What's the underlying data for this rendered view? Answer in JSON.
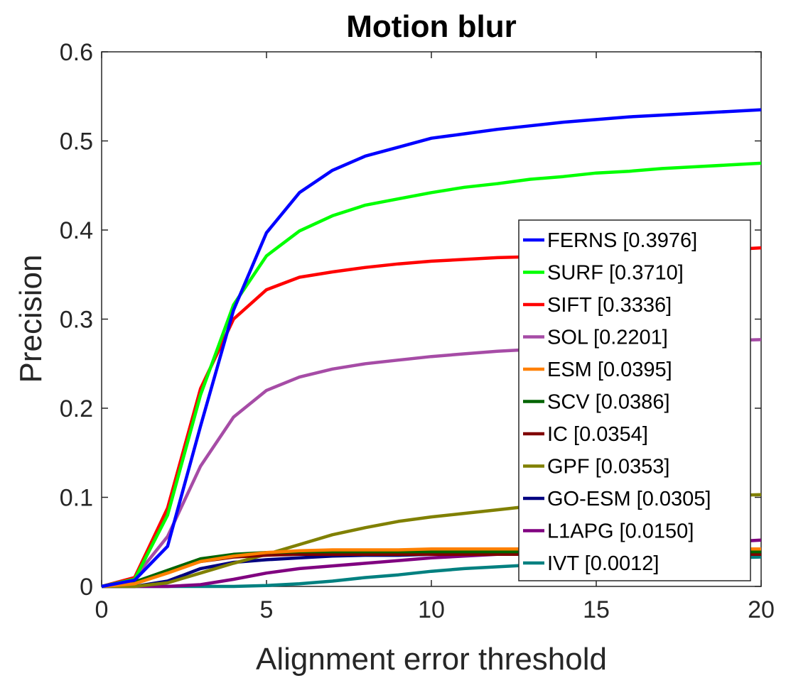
{
  "chart_data": {
    "type": "line",
    "title": "Motion blur",
    "xlabel": "Alignment error threshold",
    "ylabel": "Precision",
    "xlim": [
      0,
      20
    ],
    "ylim": [
      0,
      0.6
    ],
    "xticks": [
      "0",
      "5",
      "10",
      "15",
      "20"
    ],
    "yticks": [
      "0",
      "0.1",
      "0.2",
      "0.3",
      "0.4",
      "0.5",
      "0.6"
    ],
    "grid": false,
    "legend_position": "bottom-right",
    "x": [
      0,
      1,
      2,
      3,
      4,
      5,
      6,
      7,
      8,
      9,
      10,
      11,
      12,
      13,
      14,
      15,
      16,
      17,
      18,
      19,
      20
    ],
    "series": [
      {
        "name": "FERNS [0.3976]",
        "color": "#0000ff",
        "values": [
          0,
          0.007,
          0.045,
          0.18,
          0.31,
          0.397,
          0.442,
          0.467,
          0.483,
          0.493,
          0.503,
          0.508,
          0.513,
          0.517,
          0.521,
          0.524,
          0.527,
          0.529,
          0.531,
          0.533,
          0.535
        ]
      },
      {
        "name": "SURF [0.3710]",
        "color": "#00ff00",
        "values": [
          0,
          0.008,
          0.08,
          0.215,
          0.316,
          0.371,
          0.399,
          0.416,
          0.428,
          0.435,
          0.442,
          0.448,
          0.452,
          0.457,
          0.46,
          0.464,
          0.466,
          0.469,
          0.471,
          0.473,
          0.475
        ]
      },
      {
        "name": "SIFT [0.3336]",
        "color": "#ff0000",
        "values": [
          0,
          0.01,
          0.088,
          0.222,
          0.3,
          0.333,
          0.347,
          0.353,
          0.358,
          0.362,
          0.365,
          0.367,
          0.369,
          0.37,
          0.372,
          0.373,
          0.374,
          0.375,
          0.377,
          0.378,
          0.38
        ]
      },
      {
        "name": "SOL [0.2201]",
        "color": "#a64ca6",
        "values": [
          0,
          0.01,
          0.056,
          0.135,
          0.19,
          0.22,
          0.235,
          0.244,
          0.25,
          0.254,
          0.258,
          0.261,
          0.264,
          0.266,
          0.268,
          0.27,
          0.272,
          0.273,
          0.275,
          0.276,
          0.277
        ]
      },
      {
        "name": "ESM [0.0395]",
        "color": "#ff8000",
        "values": [
          0,
          0.003,
          0.015,
          0.028,
          0.034,
          0.038,
          0.04,
          0.041,
          0.041,
          0.041,
          0.042,
          0.042,
          0.042,
          0.042,
          0.042,
          0.042,
          0.042,
          0.042,
          0.042,
          0.042,
          0.042
        ]
      },
      {
        "name": "SCV [0.0386]",
        "color": "#006400",
        "values": [
          0,
          0.005,
          0.018,
          0.031,
          0.036,
          0.038,
          0.039,
          0.039,
          0.039,
          0.039,
          0.039,
          0.039,
          0.039,
          0.039,
          0.039,
          0.039,
          0.039,
          0.039,
          0.039,
          0.039,
          0.039
        ]
      },
      {
        "name": "IC [0.0354]",
        "color": "#800000",
        "values": [
          0,
          0.004,
          0.017,
          0.028,
          0.033,
          0.035,
          0.036,
          0.036,
          0.036,
          0.036,
          0.036,
          0.036,
          0.036,
          0.036,
          0.036,
          0.036,
          0.036,
          0.036,
          0.036,
          0.036,
          0.036
        ]
      },
      {
        "name": "GPF [0.0353]",
        "color": "#808000",
        "values": [
          0,
          0.0,
          0.004,
          0.015,
          0.026,
          0.036,
          0.047,
          0.058,
          0.066,
          0.073,
          0.078,
          0.082,
          0.086,
          0.09,
          0.093,
          0.095,
          0.097,
          0.099,
          0.101,
          0.102,
          0.103
        ]
      },
      {
        "name": "GO-ESM [0.0305]",
        "color": "#000080",
        "values": [
          0,
          0.0,
          0.006,
          0.02,
          0.027,
          0.03,
          0.032,
          0.034,
          0.035,
          0.035,
          0.036,
          0.036,
          0.036,
          0.037,
          0.037,
          0.037,
          0.037,
          0.037,
          0.037,
          0.037,
          0.037
        ]
      },
      {
        "name": "L1APG [0.0150]",
        "color": "#800080",
        "values": [
          0,
          0.0,
          0.0,
          0.002,
          0.008,
          0.015,
          0.02,
          0.023,
          0.026,
          0.029,
          0.032,
          0.034,
          0.036,
          0.038,
          0.04,
          0.042,
          0.044,
          0.046,
          0.048,
          0.05,
          0.052
        ]
      },
      {
        "name": "IVT [0.0012]",
        "color": "#008080",
        "values": [
          0,
          0.0,
          0.0,
          0.0,
          0.0,
          0.001,
          0.003,
          0.006,
          0.01,
          0.013,
          0.017,
          0.02,
          0.022,
          0.024,
          0.026,
          0.027,
          0.029,
          0.03,
          0.031,
          0.032,
          0.033
        ]
      }
    ]
  }
}
